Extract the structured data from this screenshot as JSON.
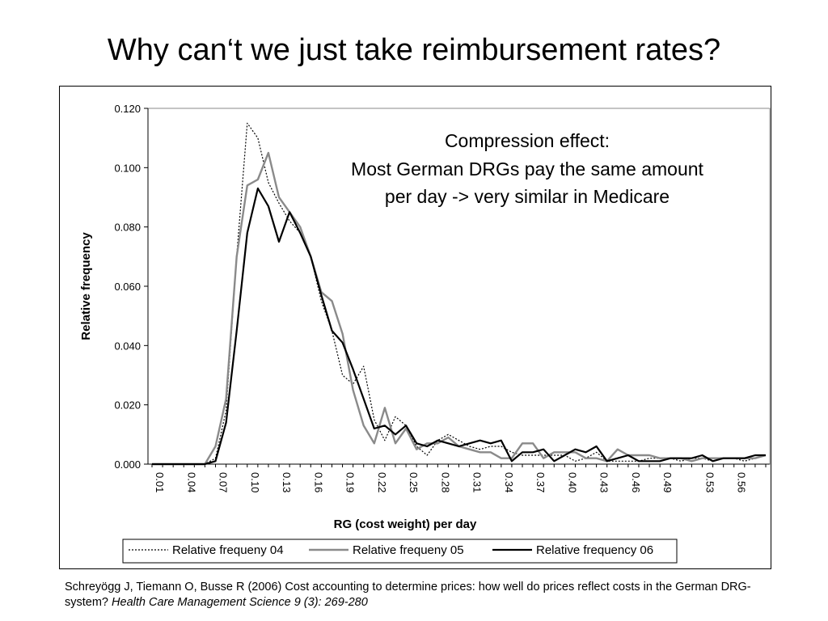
{
  "slide": {
    "title": "Why can‘t we just take reimbursement rates?",
    "citation_text": "Schreyögg J, Tiemann O, Busse R (2006) Cost accounting to determine prices: how well do prices reflect costs in the German DRG-system?",
    "citation_journal": "Health Care Management Science 9 (3): 269-280"
  },
  "chart_data": {
    "type": "line",
    "title": "",
    "xlabel": "RG (cost weight) per day",
    "ylabel": "Relative frequency",
    "ylim": [
      0,
      0.12
    ],
    "yticks": [
      "0.000",
      "0.020",
      "0.040",
      "0.060",
      "0.080",
      "0.100",
      "0.120"
    ],
    "x": [
      "0.01",
      "0.02",
      "0.03",
      "0.04",
      "0.05",
      "0.06",
      "0.07",
      "0.08",
      "0.09",
      "0.10",
      "0.11",
      "0.12",
      "0.13",
      "0.14",
      "0.15",
      "0.16",
      "0.17",
      "0.18",
      "0.19",
      "0.20",
      "0.21",
      "0.22",
      "0.23",
      "0.24",
      "0.25",
      "0.26",
      "0.27",
      "0.28",
      "0.29",
      "0.30",
      "0.31",
      "0.32",
      "0.33",
      "0.34",
      "0.35",
      "0.36",
      "0.37",
      "0.38",
      "0.39",
      "0.40",
      "0.41",
      "0.42",
      "0.43",
      "0.44",
      "0.45",
      "0.46",
      "0.47",
      "0.48",
      "0.49",
      "0.50",
      "0.51",
      "0.52",
      "0.53",
      "0.54",
      "0.55",
      "0.56",
      "0.57",
      "0.58",
      "0.59"
    ],
    "xtick_labels": [
      "0.01",
      "0.04",
      "0.07",
      "0.10",
      "0.13",
      "0.16",
      "0.19",
      "0.22",
      "0.25",
      "0.28",
      "0.31",
      "0.34",
      "0.37",
      "0.40",
      "0.43",
      "0.46",
      "0.49",
      "0.53",
      "0.56"
    ],
    "grid": false,
    "legend": "bottom",
    "annotation": [
      "Compression effect:",
      "Most German DRGs pay the same amount",
      "per day -> very similar in Medicare"
    ],
    "series": [
      {
        "name": "Relative frequeny 04",
        "style": "dotted",
        "color": "#000000",
        "values": [
          0,
          0,
          0,
          0,
          0,
          0,
          0.002,
          0.018,
          0.07,
          0.115,
          0.11,
          0.095,
          0.088,
          0.082,
          0.078,
          0.07,
          0.055,
          0.045,
          0.03,
          0.027,
          0.033,
          0.015,
          0.008,
          0.016,
          0.013,
          0.006,
          0.003,
          0.008,
          0.01,
          0.008,
          0.006,
          0.005,
          0.006,
          0.006,
          0.004,
          0.003,
          0.003,
          0.003,
          0.003,
          0.003,
          0.001,
          0.002,
          0.004,
          0.001,
          0.001,
          0.001,
          0.001,
          0.002,
          0.002,
          0.002,
          0.001,
          0.002,
          0.002,
          0.001,
          0.002,
          0.002,
          0.001,
          0.002,
          0.003
        ]
      },
      {
        "name": "Relative frequeny 05",
        "style": "solid",
        "color": "#8a8a8a",
        "values": [
          0,
          0,
          0,
          0,
          0,
          0,
          0.006,
          0.022,
          0.07,
          0.094,
          0.096,
          0.105,
          0.09,
          0.085,
          0.08,
          0.07,
          0.058,
          0.055,
          0.044,
          0.025,
          0.013,
          0.007,
          0.019,
          0.007,
          0.012,
          0.005,
          0.007,
          0.007,
          0.009,
          0.006,
          0.005,
          0.004,
          0.004,
          0.002,
          0.002,
          0.007,
          0.007,
          0.002,
          0.004,
          0.004,
          0.004,
          0.002,
          0.002,
          0.001,
          0.005,
          0.003,
          0.003,
          0.003,
          0.002,
          0.002,
          0.002,
          0.001,
          0.002,
          0.002,
          0.002,
          0.002,
          0.002,
          0.002,
          0.003
        ]
      },
      {
        "name": "Relative frequency 06",
        "style": "solid",
        "color": "#000000",
        "values": [
          0,
          0,
          0,
          0,
          0,
          0,
          0.001,
          0.014,
          0.045,
          0.078,
          0.093,
          0.087,
          0.075,
          0.085,
          0.078,
          0.07,
          0.057,
          0.045,
          0.041,
          0.032,
          0.022,
          0.012,
          0.013,
          0.01,
          0.013,
          0.007,
          0.006,
          0.008,
          0.007,
          0.006,
          0.007,
          0.008,
          0.007,
          0.008,
          0.001,
          0.004,
          0.004,
          0.005,
          0.001,
          0.003,
          0.005,
          0.004,
          0.006,
          0.001,
          0.002,
          0.003,
          0.001,
          0.001,
          0.001,
          0.002,
          0.002,
          0.002,
          0.003,
          0.001,
          0.002,
          0.002,
          0.002,
          0.003,
          0.003
        ]
      }
    ]
  }
}
